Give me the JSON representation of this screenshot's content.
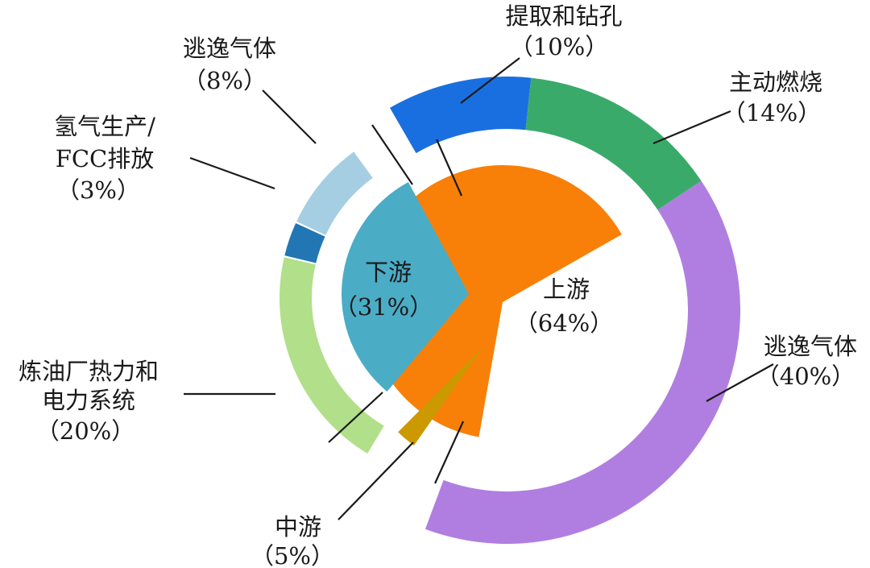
{
  "chart_data": {
    "type": "pie",
    "inner": [
      {
        "label": "上游",
        "pct": "（64%）",
        "value": 64,
        "color": "#f88008"
      },
      {
        "label": "下游",
        "pct": "（31%）",
        "value": 31,
        "color": "#4bacc6"
      },
      {
        "label": "中游",
        "pct": "（5%）",
        "value": 5,
        "color": "#cc9900"
      }
    ],
    "outer": [
      {
        "group": "上游",
        "label": "提取和钻孔",
        "pct": "（10%）",
        "value": 10,
        "color": "#1a6fe0"
      },
      {
        "group": "上游",
        "label": "主动燃烧",
        "pct": "（14%）",
        "value": 14,
        "color": "#3aaa6a"
      },
      {
        "group": "上游",
        "label": "逃逸气体",
        "pct": "（40%）",
        "value": 40,
        "color": "#b07ee0"
      },
      {
        "group": "下游",
        "label": "炼油厂热力和",
        "label2": "电力系统",
        "pct": "（20%）",
        "value": 20,
        "color": "#b2df8a"
      },
      {
        "group": "下游",
        "label": "氢气生产/",
        "label2": "FCC排放",
        "pct": "（3%）",
        "value": 3,
        "color": "#2276b4"
      },
      {
        "group": "下游",
        "label": "逃逸气体",
        "pct": "（8%）",
        "value": 8,
        "color": "#a6cee3"
      }
    ]
  }
}
